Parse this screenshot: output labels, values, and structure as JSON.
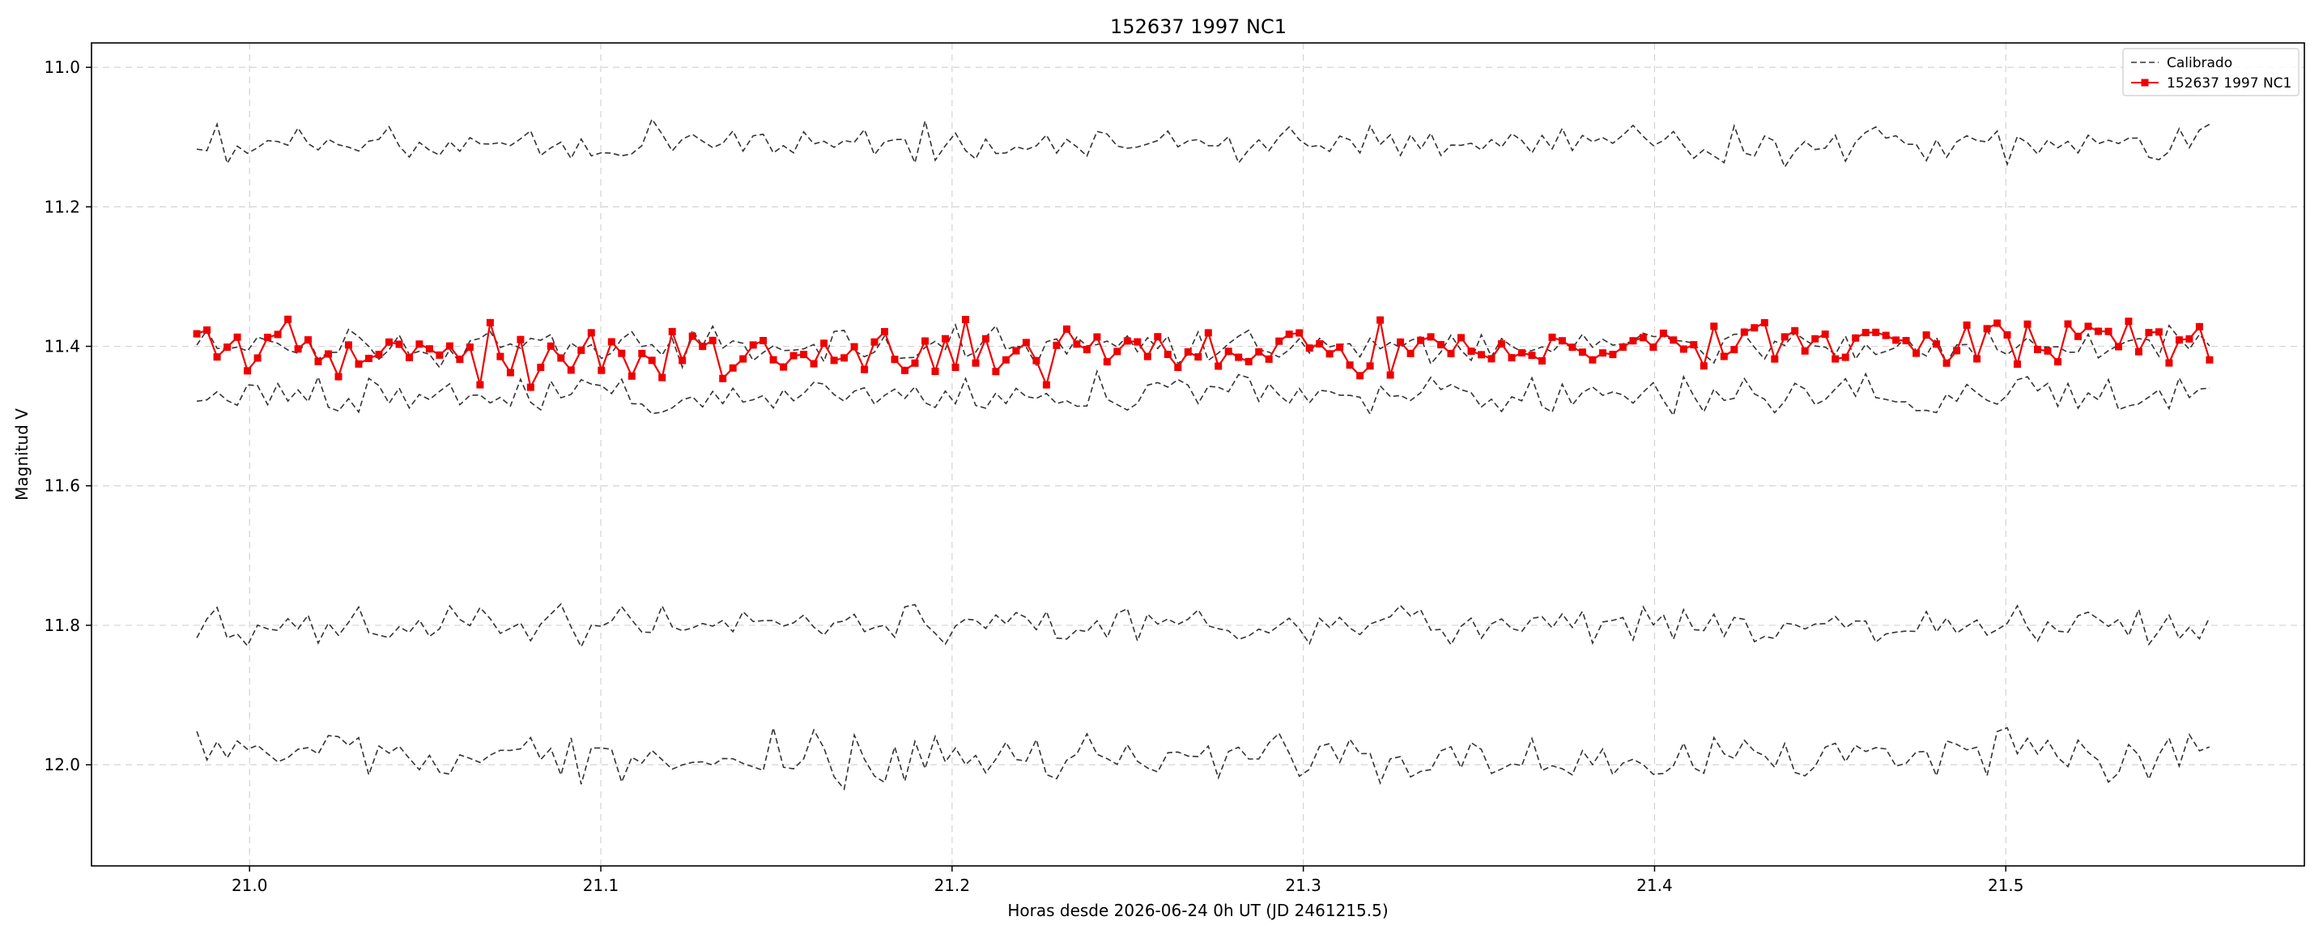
{
  "chart_data": {
    "type": "line",
    "title": "152637 1997 NC1",
    "xlabel": "Horas desde 2026-06-24 0h UT (JD 2461215.5)",
    "ylabel": "Magnitud V",
    "xlim": [
      20.955,
      21.585
    ],
    "ylim": [
      12.145,
      10.965
    ],
    "y_inverted": true,
    "grid": true,
    "legend_position": "top-right",
    "x_ticks": [
      21.0,
      21.1,
      21.2,
      21.3,
      21.4,
      21.5
    ],
    "y_ticks": [
      11.0,
      11.2,
      11.4,
      11.6,
      11.8,
      12.0
    ],
    "x_tick_labels": [
      "21.0",
      "21.1",
      "21.2",
      "21.3",
      "21.4",
      "21.5"
    ],
    "y_tick_labels": [
      "11.0",
      "11.2",
      "11.4",
      "11.6",
      "11.8",
      "12.0"
    ],
    "x_start": 20.985,
    "x_end": 21.558,
    "n_points": 200,
    "colors": {
      "target": "#ee0000",
      "comparison": "#333333"
    },
    "series": [
      {
        "legend": "Calibrado",
        "role": "comparison",
        "base": 11.11,
        "amplitude": 0.014,
        "seed": 7
      },
      {
        "legend": "",
        "role": "comparison",
        "base": 11.4,
        "amplitude": 0.012,
        "seed": 13
      },
      {
        "legend": "",
        "role": "comparison",
        "base": 11.47,
        "amplitude": 0.013,
        "seed": 29
      },
      {
        "legend": "",
        "role": "comparison",
        "base": 11.8,
        "amplitude": 0.014,
        "seed": 41
      },
      {
        "legend": "",
        "role": "comparison",
        "base": 11.99,
        "amplitude": 0.018,
        "seed": 53
      },
      {
        "legend": "152637 1997 NC1",
        "role": "target",
        "base": 11.415,
        "trend": -0.025,
        "amplitude": 0.018,
        "seed": 97
      }
    ]
  }
}
